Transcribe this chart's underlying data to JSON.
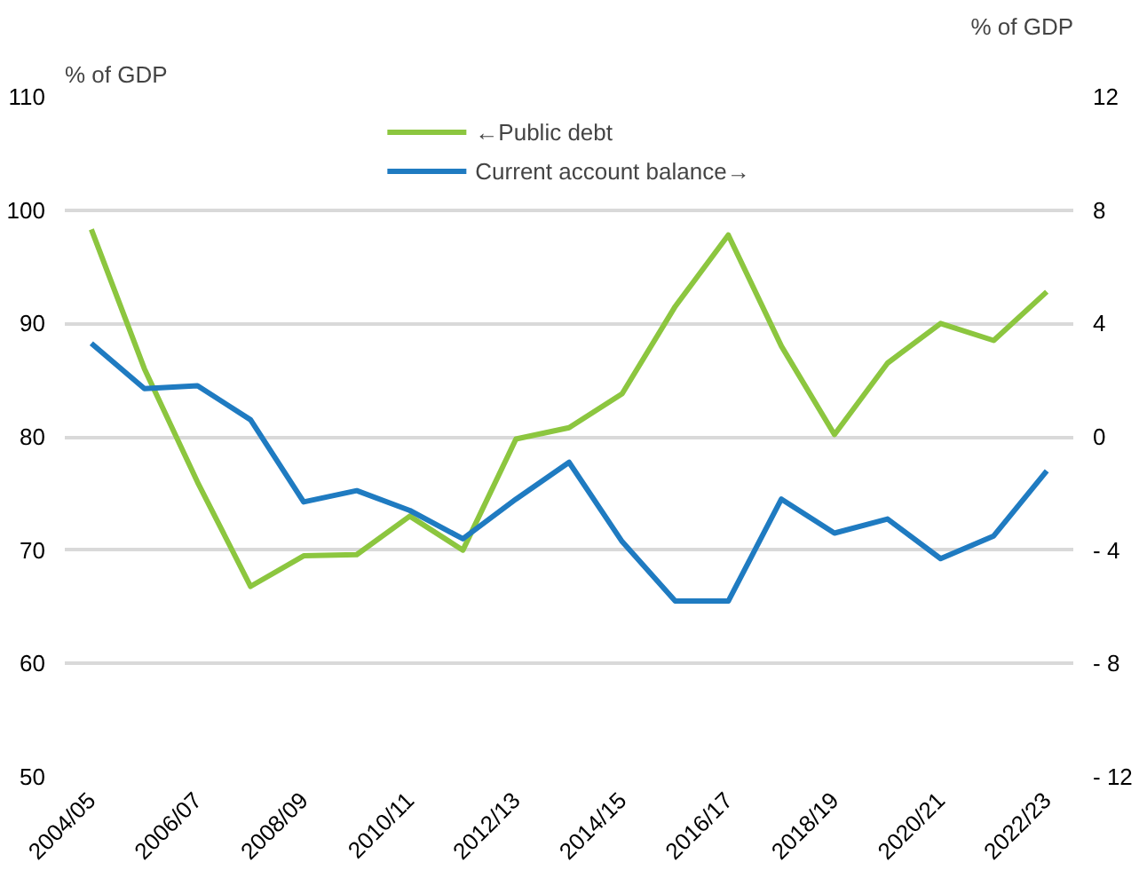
{
  "chart_data": {
    "type": "line",
    "categories": [
      "2004/05",
      null,
      "2006/07",
      null,
      "2008/09",
      null,
      "2010/11",
      null,
      "2012/13",
      null,
      "2014/15",
      null,
      "2016/17",
      null,
      "2018/19",
      null,
      "2020/21",
      null,
      "2022/23"
    ],
    "series": [
      {
        "name": "←Public debt",
        "color": "#8cc63f",
        "values": [
          98.3,
          86,
          76,
          66.8,
          69.5,
          69.6,
          73,
          70,
          79.8,
          80.8,
          83.8,
          91.5,
          97.8,
          88,
          80.2,
          86.5,
          90,
          88.5,
          92.8
        ]
      },
      {
        "name": "Current account balance→",
        "color": "#1f7bc1",
        "axis": "y2",
        "values": [
          3.3,
          1.7,
          1.8,
          0.6,
          -2.3,
          -1.9,
          -2.6,
          -3.6,
          -2.2,
          -0.9,
          -3.7,
          -5.8,
          -5.8,
          -2.2,
          -3.4,
          -2.9,
          -4.3,
          -3.5,
          -1.2
        ]
      }
    ],
    "ylabel": "% of GDP",
    "y2label": "% of GDP",
    "ylim": [
      50,
      110
    ],
    "yticks": [
      50,
      60,
      70,
      80,
      90,
      100,
      110
    ],
    "y2lim": [
      -12,
      12
    ],
    "y2ticks": [
      {
        "value": -12,
        "label": "- 12"
      },
      {
        "value": -8,
        "label": "- 8"
      },
      {
        "value": -4,
        "label": "- 4"
      },
      0,
      4,
      8,
      12
    ],
    "grid": "y",
    "legend": "top",
    "marker": "none",
    "line_style": "solid"
  }
}
